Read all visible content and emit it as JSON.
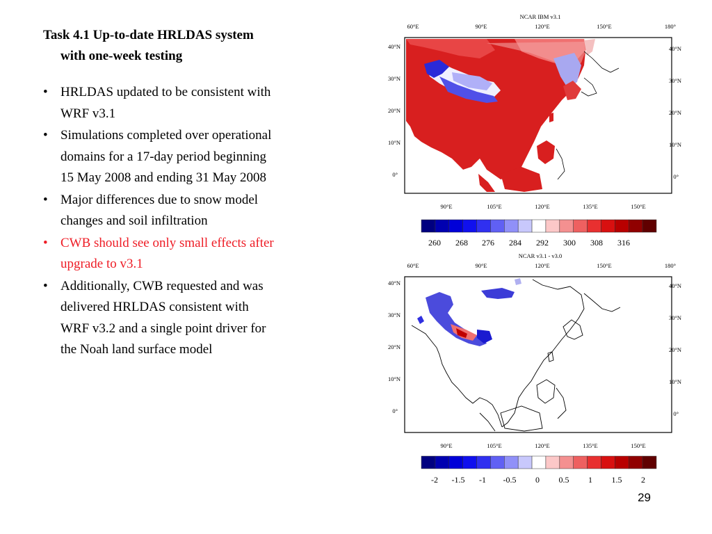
{
  "slide": {
    "title_line1": "Task 4.1 Up-to-date HRLDAS system",
    "title_line2": "with one-week testing",
    "bullets": [
      {
        "line1": "HRLDAS updated to be consistent with",
        "line2": "WRF v3.1",
        "line3": "",
        "color": "black"
      },
      {
        "line1": "Simulations completed over operational",
        "line2": "domains for a 17-day period beginning",
        "line3": "15 May 2008 and ending 31 May 2008",
        "color": "black"
      },
      {
        "line1": "Major differences due to snow model",
        "line2": "changes and soil infiltration",
        "line3": "",
        "color": "black"
      },
      {
        "line1": "CWB should see only small effects after",
        "line2": "upgrade to v3.1",
        "line3": "",
        "color": "red"
      },
      {
        "line1": "Additionally, CWB requested and was",
        "line2": "delivered HRLDAS consistent with",
        "line3": "WRF v3.2 and a single point driver for",
        "line4": "the Noah land surface model",
        "color": "black"
      }
    ],
    "bullet_glyph": "•",
    "page_number": "29"
  },
  "maps": {
    "top": {
      "title": "NCAR IBM v3.1",
      "top_lon_labels": [
        "60°E",
        "90°E",
        "120°E",
        "150°E",
        "180°"
      ],
      "bottom_lon_labels": [
        "90°E",
        "105°E",
        "120°E",
        "135°E",
        "150°E"
      ],
      "lat_labels": [
        "40°N",
        "30°N",
        "20°N",
        "10°N",
        "0°"
      ],
      "colorbar_labels": [
        "260",
        "268",
        "276",
        "284",
        "292",
        "300",
        "308",
        "316"
      ]
    },
    "bottom": {
      "title": "NCAR v3.1 - v3.0",
      "top_lon_labels": [
        "60°E",
        "90°E",
        "120°E",
        "150°E",
        "180°"
      ],
      "bottom_lon_labels": [
        "90°E",
        "105°E",
        "120°E",
        "135°E",
        "150°E"
      ],
      "lat_labels": [
        "40°N",
        "30°N",
        "20°N",
        "10°N",
        "0°"
      ],
      "colorbar_labels": [
        "-2",
        "-1.5",
        "-1",
        "-0.5",
        "0",
        "0.5",
        "1",
        "1.5",
        "2"
      ]
    },
    "colorbar_colors": [
      "#000080",
      "#0000b0",
      "#0000d8",
      "#1010ee",
      "#3030f0",
      "#6060f4",
      "#9090f8",
      "#c8c8fc",
      "#ffffff",
      "#fcc8c8",
      "#f49090",
      "#ee6060",
      "#e83030",
      "#d81010",
      "#b80000",
      "#900000",
      "#600000"
    ]
  }
}
